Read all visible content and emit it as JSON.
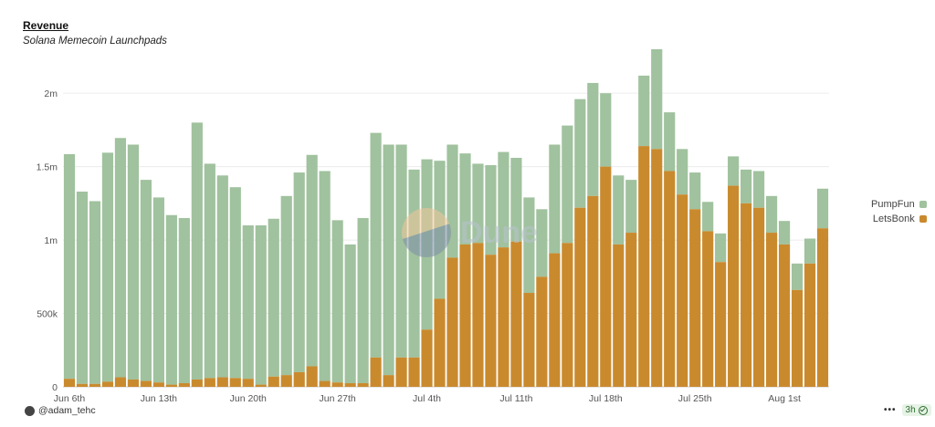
{
  "header": {
    "title": "Revenue",
    "subtitle": "Solana Memecoin Launchpads"
  },
  "watermark": {
    "text": "Dune"
  },
  "footer": {
    "author": "@adam_tehc",
    "more_label": "•••",
    "refresh_label": "3h"
  },
  "colors": {
    "pumpfun": "#a0c29e",
    "letsbonk": "#c98a2e",
    "grid": "#ececec",
    "axis_text": "#555555"
  },
  "chart_data": {
    "type": "bar",
    "stacked": true,
    "title": "Revenue",
    "subtitle": "Solana Memecoin Launchpads",
    "xlabel": "",
    "ylabel": "",
    "ylim": [
      0,
      2200000
    ],
    "y_ticks": [
      {
        "value": 0,
        "label": "0"
      },
      {
        "value": 500000,
        "label": "500k"
      },
      {
        "value": 1000000,
        "label": "1m"
      },
      {
        "value": 1500000,
        "label": "1.5m"
      },
      {
        "value": 2000000,
        "label": "2m"
      }
    ],
    "x_tick_labels": [
      {
        "index": 0,
        "label": "Jun 6th"
      },
      {
        "index": 7,
        "label": "Jun 13th"
      },
      {
        "index": 14,
        "label": "Jun 20th"
      },
      {
        "index": 21,
        "label": "Jun 27th"
      },
      {
        "index": 28,
        "label": "Jul 4th"
      },
      {
        "index": 35,
        "label": "Jul 11th"
      },
      {
        "index": 42,
        "label": "Jul 18th"
      },
      {
        "index": 49,
        "label": "Jul 25th"
      },
      {
        "index": 56,
        "label": "Aug 1st"
      }
    ],
    "legend_position": "right",
    "grid": true,
    "categories": [
      "Jun 6",
      "Jun 7",
      "Jun 8",
      "Jun 9",
      "Jun 10",
      "Jun 11",
      "Jun 12",
      "Jun 13",
      "Jun 14",
      "Jun 15",
      "Jun 16",
      "Jun 17",
      "Jun 18",
      "Jun 19",
      "Jun 20",
      "Jun 21",
      "Jun 22",
      "Jun 23",
      "Jun 24",
      "Jun 25",
      "Jun 26",
      "Jun 27",
      "Jun 28",
      "Jun 29",
      "Jun 30",
      "Jul 1",
      "Jul 2",
      "Jul 3",
      "Jul 4",
      "Jul 5",
      "Jul 6",
      "Jul 7",
      "Jul 8",
      "Jul 9",
      "Jul 10",
      "Jul 11",
      "Jul 12",
      "Jul 13",
      "Jul 14",
      "Jul 15",
      "Jul 16",
      "Jul 17",
      "Jul 18",
      "Jul 19",
      "Jul 20",
      "Jul 21",
      "Jul 22",
      "Jul 23",
      "Jul 24",
      "Jul 25",
      "Jul 26",
      "Jul 27",
      "Jul 28",
      "Jul 29",
      "Jul 30",
      "Jul 31",
      "Aug 1",
      "Aug 2",
      "Aug 3",
      "Aug 4"
    ],
    "series": [
      {
        "name": "PumpFun",
        "values": [
          1530000,
          1310000,
          1245000,
          1560000,
          1630000,
          1600000,
          1370000,
          1260000,
          1155000,
          1125000,
          1750000,
          1460000,
          1375000,
          1300000,
          1045000,
          1085000,
          1075000,
          1220000,
          1360000,
          1440000,
          1430000,
          1105000,
          945000,
          1125000,
          1530000,
          1570000,
          1450000,
          1280000,
          1160000,
          940000,
          770000,
          620000,
          540000,
          610000,
          650000,
          570000,
          650000,
          460000,
          740000,
          800000,
          740000,
          770000,
          500000,
          470000,
          360000,
          480000,
          680000,
          400000,
          310000,
          250000,
          200000,
          195000,
          200000,
          230000,
          250000,
          250000,
          160000,
          180000,
          170000,
          270000
        ]
      },
      {
        "name": "LetsBonk",
        "values": [
          55000,
          20000,
          20000,
          35000,
          65000,
          50000,
          40000,
          30000,
          15000,
          25000,
          50000,
          60000,
          65000,
          60000,
          55000,
          15000,
          70000,
          80000,
          100000,
          140000,
          40000,
          30000,
          25000,
          25000,
          200000,
          80000,
          200000,
          200000,
          390000,
          600000,
          880000,
          970000,
          980000,
          900000,
          950000,
          990000,
          640000,
          750000,
          910000,
          980000,
          1220000,
          1300000,
          1500000,
          970000,
          1050000,
          1640000,
          1620000,
          1470000,
          1310000,
          1210000,
          1060000,
          850000,
          1370000,
          1250000,
          1220000,
          1050000,
          970000,
          660000,
          840000,
          1080000
        ]
      }
    ]
  }
}
